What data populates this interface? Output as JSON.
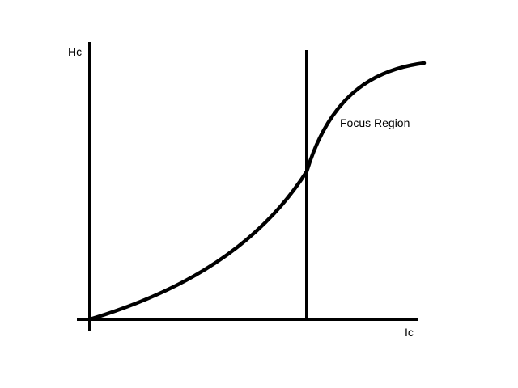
{
  "diagram": {
    "y_axis_label": "Hc",
    "x_axis_label": "Ic",
    "region_label": "Focus Region",
    "line_color": "#000000",
    "background_color": "#ffffff"
  }
}
